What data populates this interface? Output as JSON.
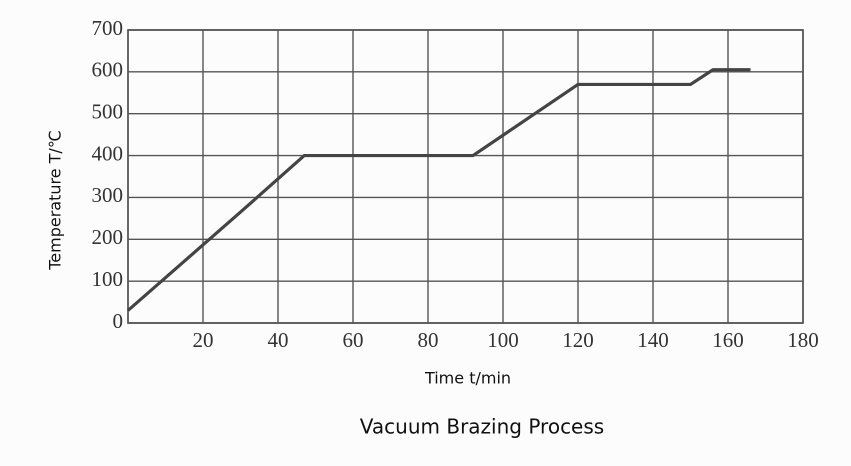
{
  "chart_data": {
    "type": "line",
    "title": "Vacuum Brazing Process",
    "xlabel": "Time t/min",
    "ylabel": "Temperature T/℃",
    "x": [
      0,
      30,
      47,
      92,
      120,
      150,
      156,
      166
    ],
    "values": [
      30,
      265,
      400,
      400,
      570,
      570,
      605,
      605
    ],
    "color": "#444444",
    "xlim": [
      0,
      180
    ],
    "xticks": [
      20,
      40,
      60,
      80,
      100,
      120,
      140,
      160,
      180
    ],
    "ylim": [
      0,
      700
    ],
    "yticks": [
      0,
      100,
      200,
      300,
      400,
      500,
      600,
      700
    ],
    "grid": true
  }
}
